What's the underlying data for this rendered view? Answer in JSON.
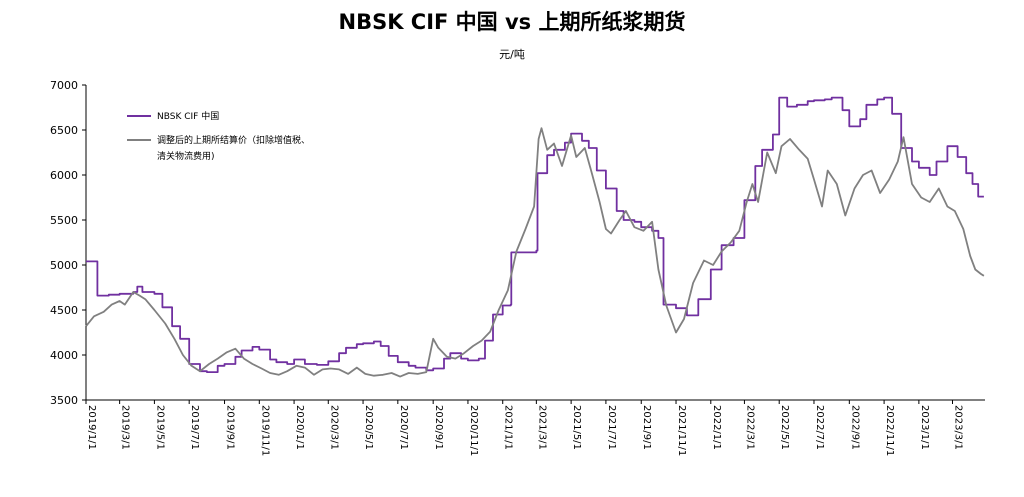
{
  "chart_data": {
    "type": "line",
    "title": "NBSK CIF 中国 vs 上期所纸浆期货",
    "subtitle": "元/吨",
    "ylim": [
      3500,
      7000
    ],
    "y_ticks": [
      3500,
      4000,
      4500,
      5000,
      5500,
      6000,
      6500,
      7000
    ],
    "x_ticks": [
      "2019/1/1",
      "2019/3/1",
      "2019/5/1",
      "2019/7/1",
      "2019/9/1",
      "2019/11/1",
      "2020/1/1",
      "2020/3/1",
      "2020/5/1",
      "2020/7/1",
      "2020/9/1",
      "2020/11/1",
      "2021/1/1",
      "2021/3/1",
      "2021/5/1",
      "2021/7/1",
      "2021/9/1",
      "2021/11/1",
      "2022/1/1",
      "2022/3/1",
      "2022/5/1",
      "2022/7/1",
      "2022/9/1",
      "2022/11/1",
      "2023/1/1",
      "2023/3/1"
    ],
    "legend_position": "top-left",
    "grid": false,
    "series": [
      {
        "name": "NBSK CIF 中国",
        "color": "#7030a0",
        "style": "step",
        "points": [
          [
            "2019-01-01",
            5040
          ],
          [
            "2019-01-20",
            5040
          ],
          [
            "2019-01-21",
            4660
          ],
          [
            "2019-02-10",
            4670
          ],
          [
            "2019-03-01",
            4680
          ],
          [
            "2019-03-25",
            4700
          ],
          [
            "2019-04-01",
            4760
          ],
          [
            "2019-04-10",
            4700
          ],
          [
            "2019-05-01",
            4680
          ],
          [
            "2019-05-15",
            4530
          ],
          [
            "2019-06-01",
            4320
          ],
          [
            "2019-06-15",
            4180
          ],
          [
            "2019-07-01",
            3900
          ],
          [
            "2019-07-20",
            3820
          ],
          [
            "2019-08-01",
            3810
          ],
          [
            "2019-08-20",
            3880
          ],
          [
            "2019-09-01",
            3900
          ],
          [
            "2019-09-20",
            3980
          ],
          [
            "2019-10-01",
            4050
          ],
          [
            "2019-10-20",
            4090
          ],
          [
            "2019-11-01",
            4060
          ],
          [
            "2019-11-20",
            3950
          ],
          [
            "2019-12-01",
            3920
          ],
          [
            "2019-12-20",
            3900
          ],
          [
            "2020-01-01",
            3950
          ],
          [
            "2020-01-20",
            3900
          ],
          [
            "2020-02-10",
            3890
          ],
          [
            "2020-03-01",
            3930
          ],
          [
            "2020-03-20",
            4020
          ],
          [
            "2020-04-01",
            4080
          ],
          [
            "2020-04-20",
            4120
          ],
          [
            "2020-05-01",
            4130
          ],
          [
            "2020-05-20",
            4150
          ],
          [
            "2020-06-01",
            4100
          ],
          [
            "2020-06-15",
            3990
          ],
          [
            "2020-07-01",
            3920
          ],
          [
            "2020-07-20",
            3880
          ],
          [
            "2020-08-01",
            3860
          ],
          [
            "2020-08-20",
            3830
          ],
          [
            "2020-09-01",
            3850
          ],
          [
            "2020-09-20",
            3960
          ],
          [
            "2020-10-01",
            4020
          ],
          [
            "2020-10-20",
            3960
          ],
          [
            "2020-11-01",
            3940
          ],
          [
            "2020-11-20",
            3960
          ],
          [
            "2020-12-01",
            4160
          ],
          [
            "2020-12-15",
            4450
          ],
          [
            "2021-01-01",
            4550
          ],
          [
            "2021-01-15",
            4560
          ],
          [
            "2021-01-16",
            5140
          ],
          [
            "2021-02-10",
            5140
          ],
          [
            "2021-03-01",
            5160
          ],
          [
            "2021-03-03",
            6020
          ],
          [
            "2021-03-20",
            6220
          ],
          [
            "2021-04-01",
            6280
          ],
          [
            "2021-04-20",
            6360
          ],
          [
            "2021-05-01",
            6460
          ],
          [
            "2021-05-20",
            6380
          ],
          [
            "2021-06-01",
            6300
          ],
          [
            "2021-06-15",
            6050
          ],
          [
            "2021-07-01",
            5850
          ],
          [
            "2021-07-20",
            5600
          ],
          [
            "2021-08-01",
            5500
          ],
          [
            "2021-08-20",
            5480
          ],
          [
            "2021-09-01",
            5420
          ],
          [
            "2021-09-20",
            5380
          ],
          [
            "2021-10-01",
            5300
          ],
          [
            "2021-10-10",
            4560
          ],
          [
            "2021-11-01",
            4520
          ],
          [
            "2021-11-20",
            4440
          ],
          [
            "2021-12-10",
            4620
          ],
          [
            "2022-01-01",
            4950
          ],
          [
            "2022-01-20",
            5220
          ],
          [
            "2022-02-10",
            5300
          ],
          [
            "2022-03-01",
            5720
          ],
          [
            "2022-03-20",
            6100
          ],
          [
            "2022-04-01",
            6280
          ],
          [
            "2022-04-20",
            6450
          ],
          [
            "2022-05-01",
            6860
          ],
          [
            "2022-05-15",
            6760
          ],
          [
            "2022-06-01",
            6780
          ],
          [
            "2022-06-20",
            6820
          ],
          [
            "2022-07-01",
            6830
          ],
          [
            "2022-07-20",
            6840
          ],
          [
            "2022-08-01",
            6860
          ],
          [
            "2022-08-20",
            6720
          ],
          [
            "2022-09-01",
            6540
          ],
          [
            "2022-09-20",
            6620
          ],
          [
            "2022-10-01",
            6780
          ],
          [
            "2022-10-20",
            6840
          ],
          [
            "2022-11-01",
            6860
          ],
          [
            "2022-11-15",
            6680
          ],
          [
            "2022-12-01",
            6300
          ],
          [
            "2022-12-20",
            6150
          ],
          [
            "2023-01-01",
            6080
          ],
          [
            "2023-01-20",
            6000
          ],
          [
            "2023-02-01",
            6150
          ],
          [
            "2023-02-20",
            6320
          ],
          [
            "2023-03-01",
            6320
          ],
          [
            "2023-03-10",
            6200
          ],
          [
            "2023-03-25",
            6020
          ],
          [
            "2023-04-05",
            5900
          ],
          [
            "2023-04-15",
            5760
          ],
          [
            "2023-04-25",
            5760
          ]
        ]
      },
      {
        "name": "调整后的上期所结算价（扣除增值税、清关物流费用)",
        "color": "#808080",
        "style": "line",
        "points": [
          [
            "2019-01-01",
            4320
          ],
          [
            "2019-01-15",
            4430
          ],
          [
            "2019-02-01",
            4480
          ],
          [
            "2019-02-15",
            4560
          ],
          [
            "2019-03-01",
            4600
          ],
          [
            "2019-03-10",
            4560
          ],
          [
            "2019-03-25",
            4700
          ],
          [
            "2019-04-05",
            4660
          ],
          [
            "2019-04-15",
            4620
          ],
          [
            "2019-05-01",
            4500
          ],
          [
            "2019-05-20",
            4350
          ],
          [
            "2019-06-05",
            4180
          ],
          [
            "2019-06-20",
            4000
          ],
          [
            "2019-07-05",
            3880
          ],
          [
            "2019-07-20",
            3820
          ],
          [
            "2019-08-05",
            3900
          ],
          [
            "2019-08-20",
            3960
          ],
          [
            "2019-09-05",
            4030
          ],
          [
            "2019-09-20",
            4070
          ],
          [
            "2019-10-05",
            3960
          ],
          [
            "2019-10-20",
            3900
          ],
          [
            "2019-11-05",
            3850
          ],
          [
            "2019-11-20",
            3800
          ],
          [
            "2019-12-05",
            3780
          ],
          [
            "2019-12-20",
            3820
          ],
          [
            "2020-01-05",
            3880
          ],
          [
            "2020-01-20",
            3860
          ],
          [
            "2020-02-05",
            3780
          ],
          [
            "2020-02-20",
            3840
          ],
          [
            "2020-03-05",
            3850
          ],
          [
            "2020-03-20",
            3840
          ],
          [
            "2020-04-05",
            3790
          ],
          [
            "2020-04-20",
            3860
          ],
          [
            "2020-05-05",
            3790
          ],
          [
            "2020-05-20",
            3770
          ],
          [
            "2020-06-05",
            3780
          ],
          [
            "2020-06-20",
            3800
          ],
          [
            "2020-07-05",
            3760
          ],
          [
            "2020-07-20",
            3800
          ],
          [
            "2020-08-05",
            3790
          ],
          [
            "2020-08-20",
            3810
          ],
          [
            "2020-09-01",
            4180
          ],
          [
            "2020-09-10",
            4080
          ],
          [
            "2020-09-25",
            3980
          ],
          [
            "2020-10-10",
            3960
          ],
          [
            "2020-10-25",
            4020
          ],
          [
            "2020-11-10",
            4100
          ],
          [
            "2020-11-25",
            4160
          ],
          [
            "2020-12-10",
            4260
          ],
          [
            "2020-12-25",
            4500
          ],
          [
            "2021-01-10",
            4720
          ],
          [
            "2021-01-25",
            5150
          ],
          [
            "2021-02-10",
            5400
          ],
          [
            "2021-02-25",
            5650
          ],
          [
            "2021-03-05",
            6400
          ],
          [
            "2021-03-10",
            6520
          ],
          [
            "2021-03-20",
            6280
          ],
          [
            "2021-04-01",
            6350
          ],
          [
            "2021-04-15",
            6100
          ],
          [
            "2021-05-01",
            6440
          ],
          [
            "2021-05-10",
            6200
          ],
          [
            "2021-05-25",
            6300
          ],
          [
            "2021-06-05",
            6050
          ],
          [
            "2021-06-20",
            5700
          ],
          [
            "2021-07-01",
            5400
          ],
          [
            "2021-07-10",
            5350
          ],
          [
            "2021-07-25",
            5500
          ],
          [
            "2021-08-05",
            5600
          ],
          [
            "2021-08-20",
            5420
          ],
          [
            "2021-09-05",
            5380
          ],
          [
            "2021-09-20",
            5480
          ],
          [
            "2021-10-01",
            4950
          ],
          [
            "2021-10-15",
            4550
          ],
          [
            "2021-11-01",
            4250
          ],
          [
            "2021-11-15",
            4400
          ],
          [
            "2021-12-01",
            4800
          ],
          [
            "2021-12-20",
            5050
          ],
          [
            "2022-01-05",
            5000
          ],
          [
            "2022-01-20",
            5150
          ],
          [
            "2022-02-05",
            5250
          ],
          [
            "2022-02-20",
            5380
          ],
          [
            "2022-03-05",
            5700
          ],
          [
            "2022-03-15",
            5900
          ],
          [
            "2022-03-25",
            5700
          ],
          [
            "2022-04-10",
            6250
          ],
          [
            "2022-04-25",
            6020
          ],
          [
            "2022-05-05",
            6320
          ],
          [
            "2022-05-20",
            6400
          ],
          [
            "2022-06-05",
            6280
          ],
          [
            "2022-06-20",
            6180
          ],
          [
            "2022-07-01",
            5950
          ],
          [
            "2022-07-15",
            5650
          ],
          [
            "2022-07-25",
            6050
          ],
          [
            "2022-08-10",
            5900
          ],
          [
            "2022-08-25",
            5550
          ],
          [
            "2022-09-10",
            5850
          ],
          [
            "2022-09-25",
            6000
          ],
          [
            "2022-10-10",
            6050
          ],
          [
            "2022-10-25",
            5800
          ],
          [
            "2022-11-10",
            5950
          ],
          [
            "2022-11-25",
            6150
          ],
          [
            "2022-12-05",
            6420
          ],
          [
            "2022-12-20",
            5900
          ],
          [
            "2023-01-05",
            5750
          ],
          [
            "2023-01-20",
            5700
          ],
          [
            "2023-02-05",
            5850
          ],
          [
            "2023-02-20",
            5650
          ],
          [
            "2023-03-05",
            5600
          ],
          [
            "2023-03-20",
            5400
          ],
          [
            "2023-04-01",
            5100
          ],
          [
            "2023-04-10",
            4950
          ],
          [
            "2023-04-20",
            4900
          ],
          [
            "2023-04-25",
            4880
          ]
        ]
      }
    ]
  }
}
